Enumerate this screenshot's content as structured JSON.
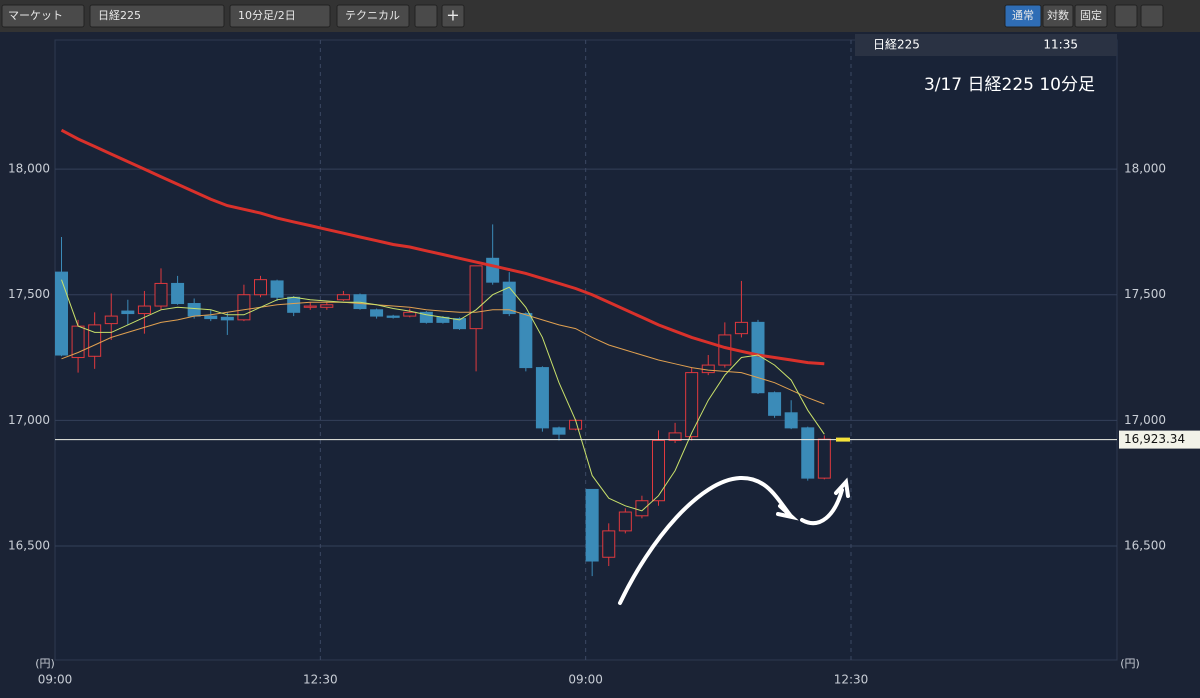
{
  "toolbar": {
    "market": "マーケット",
    "symbol": "日経225",
    "period": "10分足/2日",
    "technical": "テクニカル",
    "scale_modes": [
      "通常",
      "対数",
      "固定"
    ]
  },
  "info_bar": {
    "symbol": "日経225",
    "time": "11:35"
  },
  "chart_data": {
    "type": "candlestick",
    "title": "3/17 日経225 10分足",
    "categories": [
      "09:00",
      null,
      null,
      null,
      null,
      null,
      null,
      null,
      null,
      null,
      null,
      null,
      null,
      null,
      null,
      null,
      "12:30",
      null,
      null,
      null,
      null,
      null,
      null,
      null,
      null,
      null,
      null,
      null,
      null,
      null,
      null,
      null,
      "09:00",
      null,
      null,
      null,
      null,
      null,
      null,
      null,
      null,
      null,
      null,
      null,
      null,
      null,
      null,
      null,
      "12:30"
    ],
    "open": [
      17590,
      17250,
      17255,
      17385,
      17435,
      17425,
      17455,
      17545,
      17465,
      17415,
      17410,
      17400,
      17500,
      17555,
      17490,
      17450,
      17450,
      17480,
      17500,
      17440,
      17415,
      17415,
      17430,
      17410,
      17405,
      17365,
      17645,
      17550,
      17425,
      17210,
      16970,
      16965,
      16725,
      16455,
      16560,
      16620,
      16680,
      16920,
      16935,
      17190,
      17220,
      17345,
      17390,
      17110,
      17030,
      16970,
      16770,
      null,
      null
    ],
    "high": [
      17730,
      17400,
      17430,
      17505,
      17480,
      17515,
      17605,
      17575,
      17485,
      17440,
      17430,
      17540,
      17575,
      17560,
      17495,
      17470,
      17470,
      17515,
      17505,
      17445,
      17420,
      17445,
      17435,
      17415,
      17410,
      17615,
      17780,
      17590,
      17430,
      17215,
      16975,
      17005,
      16725,
      16590,
      16650,
      16700,
      16960,
      16990,
      17210,
      17260,
      17390,
      17555,
      17400,
      17115,
      17080,
      16975,
      16940,
      null,
      null
    ],
    "low": [
      17255,
      17190,
      17205,
      17320,
      17380,
      17345,
      17440,
      17460,
      17405,
      17395,
      17340,
      17395,
      17490,
      17475,
      17415,
      17440,
      17440,
      17475,
      17440,
      17405,
      17405,
      17410,
      17385,
      17385,
      17360,
      17195,
      17540,
      17415,
      17195,
      16955,
      16920,
      16960,
      16380,
      16420,
      16550,
      16610,
      16660,
      16910,
      16920,
      17180,
      17210,
      17330,
      17105,
      17010,
      16965,
      16760,
      16765,
      null,
      null
    ],
    "close": [
      17260,
      17375,
      17380,
      17415,
      17425,
      17455,
      17545,
      17465,
      17415,
      17405,
      17400,
      17500,
      17560,
      17490,
      17430,
      17455,
      17460,
      17500,
      17445,
      17415,
      17410,
      17430,
      17390,
      17390,
      17365,
      17615,
      17550,
      17425,
      17210,
      16970,
      16945,
      17000,
      16440,
      16560,
      16635,
      16680,
      16920,
      16950,
      17190,
      17220,
      17340,
      17390,
      17110,
      17020,
      16970,
      16770,
      16925,
      null,
      null
    ],
    "up_color": "#e0393e",
    "down_color": "#3b8bb8",
    "moving_averages": [
      {
        "color": "#d9312b",
        "width": 3,
        "values": [
          18155,
          18120,
          18090,
          18060,
          18030,
          18000,
          17970,
          17940,
          17910,
          17880,
          17855,
          17840,
          17825,
          17805,
          17790,
          17775,
          17760,
          17745,
          17730,
          17715,
          17700,
          17690,
          17675,
          17660,
          17645,
          17630,
          17615,
          17600,
          17585,
          17565,
          17545,
          17525,
          17500,
          17470,
          17440,
          17410,
          17380,
          17355,
          17330,
          17310,
          17290,
          17275,
          17260,
          17250,
          17240,
          17230,
          17225,
          null,
          null
        ]
      },
      {
        "color": "#e0a050",
        "width": 1,
        "values": [
          17245,
          17270,
          17300,
          17330,
          17350,
          17370,
          17390,
          17400,
          17415,
          17420,
          17430,
          17440,
          17450,
          17460,
          17465,
          17470,
          17470,
          17470,
          17465,
          17460,
          17455,
          17450,
          17440,
          17435,
          17430,
          17430,
          17440,
          17440,
          17420,
          17400,
          17380,
          17365,
          17330,
          17300,
          17280,
          17260,
          17240,
          17225,
          17210,
          17200,
          17195,
          17190,
          17170,
          17150,
          17120,
          17090,
          17065,
          null,
          null
        ]
      },
      {
        "color": "#c8e06a",
        "width": 1,
        "values": [
          17560,
          17375,
          17350,
          17350,
          17380,
          17410,
          17440,
          17450,
          17445,
          17440,
          17420,
          17420,
          17450,
          17480,
          17490,
          17480,
          17475,
          17470,
          17470,
          17460,
          17445,
          17435,
          17420,
          17410,
          17400,
          17440,
          17500,
          17530,
          17450,
          17330,
          17150,
          17000,
          16780,
          16690,
          16660,
          16640,
          16700,
          16800,
          16950,
          17080,
          17180,
          17250,
          17260,
          17220,
          17160,
          17040,
          16945,
          null,
          null
        ]
      }
    ],
    "price_line": {
      "value": 16923.34,
      "label": "16,923.34"
    },
    "ylim": [
      16046,
      18514
    ],
    "yticks": [
      {
        "value": 16500,
        "label": "16,500"
      },
      {
        "value": 17000,
        "label": "17,000"
      },
      {
        "value": 17500,
        "label": "17,500"
      },
      {
        "value": 18000,
        "label": "18,000"
      }
    ],
    "y_unit": "(円)",
    "grid": true
  }
}
